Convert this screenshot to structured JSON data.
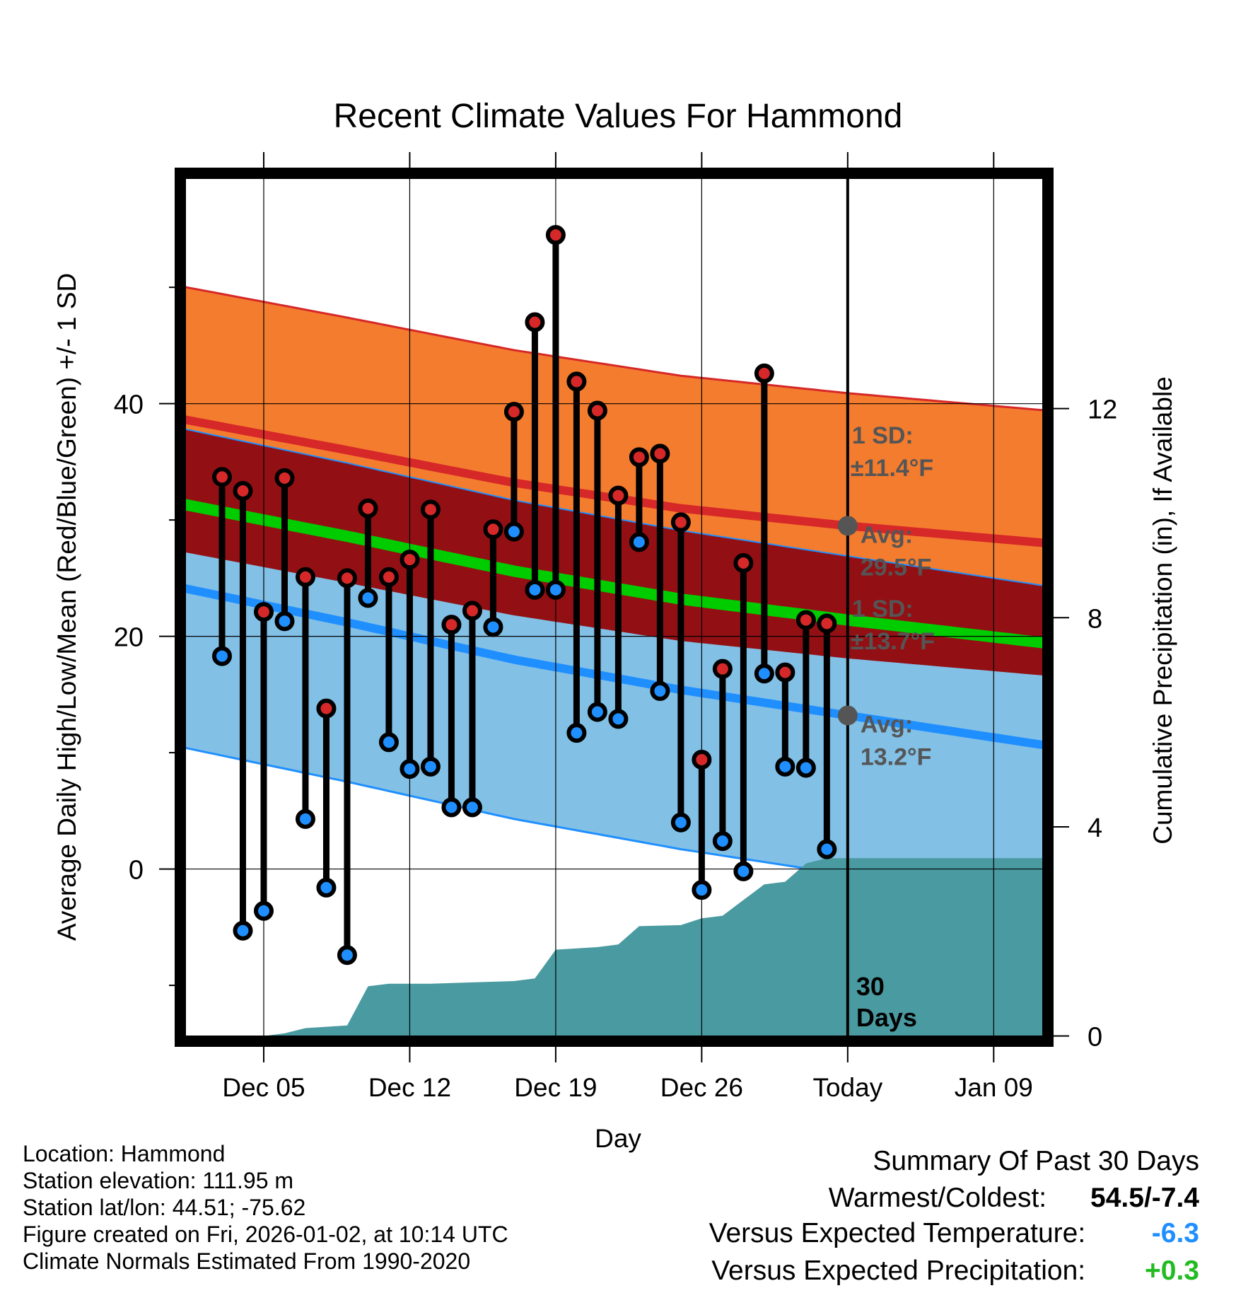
{
  "chart_data": {
    "type": "line",
    "title": "Recent Climate Values For Hammond",
    "xlabel": "Day",
    "ylabel_left": "Average Daily High/Low/Mean (Red/Blue/Green) +/- 1 SD",
    "ylabel_right": "Cumulative Precipitation (in), If Available",
    "x_domain": [
      0,
      41.6
    ],
    "y_domain_left": [
      -14.8,
      59.8
    ],
    "y_domain_right": [
      -0.1,
      16.5
    ],
    "y_ticks_left": [
      0,
      20,
      40
    ],
    "y_minor_ticks_left": [
      -10,
      10,
      30,
      50
    ],
    "y_ticks_right": [
      0,
      4,
      8,
      12
    ],
    "x_ticks": [
      {
        "day": 4,
        "label": "Dec 05"
      },
      {
        "day": 11,
        "label": "Dec 12"
      },
      {
        "day": 18,
        "label": "Dec 19"
      },
      {
        "day": 25,
        "label": "Dec 26"
      },
      {
        "day": 32,
        "label": "Today"
      },
      {
        "day": 39,
        "label": "Jan 09"
      }
    ],
    "today_day": 32,
    "today_label": "30 Days",
    "series": [
      {
        "name": "High",
        "color": "#cc2222",
        "values": [
          33.7,
          32.5,
          22.1,
          33.6,
          25.1,
          13.8,
          25.0,
          31.0,
          25.1,
          26.6,
          30.9,
          21.0,
          22.2,
          29.2,
          39.3,
          47.0,
          54.5,
          41.9,
          39.4,
          32.1,
          35.4,
          35.7,
          29.8,
          9.4,
          17.2,
          26.3,
          42.6,
          16.9,
          21.4,
          21.1
        ]
      },
      {
        "name": "Low",
        "color": "#2596e8",
        "values": [
          18.3,
          -5.3,
          -3.6,
          21.3,
          4.3,
          -1.6,
          -7.4,
          23.3,
          10.9,
          8.6,
          8.8,
          5.3,
          5.3,
          20.8,
          29.0,
          24.0,
          24.0,
          11.7,
          13.5,
          12.9,
          28.1,
          15.3,
          4.0,
          -1.8,
          2.4,
          -0.2,
          16.8,
          8.8,
          8.7,
          1.7
        ]
      }
    ],
    "normals": {
      "days": [
        0,
        8,
        16,
        24,
        32,
        41.6
      ],
      "high_mean": [
        38.7,
        36.0,
        33.2,
        31.0,
        29.5,
        28.0
      ],
      "high_sd": 11.4,
      "low_mean": [
        24.2,
        21.2,
        18.0,
        15.4,
        13.2,
        10.6
      ],
      "low_sd": 13.7,
      "mean": [
        31.4,
        28.6,
        25.6,
        23.2,
        21.4,
        19.4
      ]
    },
    "annotations": [
      {
        "anchor": "high",
        "sd_label": "1 SD:",
        "sd_value": "±11.4",
        "avg_label": "Avg:",
        "avg_value": "29.5",
        "unit": "°F"
      },
      {
        "anchor": "low",
        "sd_label": "1 SD:",
        "sd_value": "±13.7",
        "avg_label": "Avg:",
        "avg_value": "13.2",
        "unit": "°F"
      }
    ],
    "precip_steps": [
      {
        "day": 0,
        "value": 0.0
      },
      {
        "day": 4,
        "value": 0.0
      },
      {
        "day": 5,
        "value": 0.05
      },
      {
        "day": 6,
        "value": 0.15
      },
      {
        "day": 8,
        "value": 0.2
      },
      {
        "day": 9,
        "value": 0.95
      },
      {
        "day": 10,
        "value": 1.0
      },
      {
        "day": 12,
        "value": 1.0
      },
      {
        "day": 16,
        "value": 1.05
      },
      {
        "day": 17,
        "value": 1.1
      },
      {
        "day": 18,
        "value": 1.65
      },
      {
        "day": 20,
        "value": 1.7
      },
      {
        "day": 21,
        "value": 1.75
      },
      {
        "day": 22,
        "value": 2.1
      },
      {
        "day": 24,
        "value": 2.12
      },
      {
        "day": 25,
        "value": 2.25
      },
      {
        "day": 26,
        "value": 2.3
      },
      {
        "day": 27,
        "value": 2.6
      },
      {
        "day": 28,
        "value": 2.9
      },
      {
        "day": 29,
        "value": 2.95
      },
      {
        "day": 30,
        "value": 3.3
      },
      {
        "day": 31,
        "value": 3.4
      },
      {
        "day": 41.6,
        "value": 3.4
      }
    ],
    "colors": {
      "high_band": "#f47c2e",
      "high_line": "#d62828",
      "low_band": "#82c0e6",
      "low_line": "#1f8fff",
      "overlap_band": "#921014",
      "mean_line": "#00cc00",
      "precip_fill": "#4a9aa1",
      "annotation_text": "#555555",
      "anchor_dot": "#555555"
    }
  },
  "meta": {
    "location": "Location: Hammond",
    "elevation": "Station elevation: 111.95 m",
    "latlon": "Station lat/lon: 44.51; -75.62",
    "created": "Figure created on Fri, 2026-01-02, at 10:14 UTC",
    "normals": "Climate Normals Estimated From 1990-2020"
  },
  "summary": {
    "title": "Summary Of Past 30 Days",
    "warm_cold_label": "Warmest/Coldest:",
    "warm_cold_value": "54.5/-7.4",
    "temp_label": "Versus Expected Temperature:",
    "temp_value": "-6.3",
    "temp_color": "#1f8fff",
    "precip_label": "Versus Expected Precipitation:",
    "precip_value": "+0.3",
    "precip_color": "#22bb22"
  }
}
